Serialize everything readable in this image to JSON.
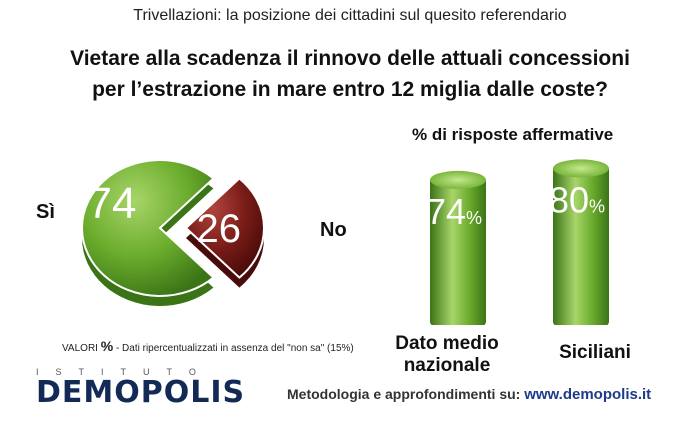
{
  "supertitle": "Trivellazioni: la posizione dei cittadini sul quesito referendario",
  "title_line1": "Vietare alla scadenza il rinnovo delle attuali concessioni",
  "title_line2": "per l’estrazione in mare entro 12 miglia dalle coste?",
  "bars_subtitle": "% di risposte affermative",
  "note": {
    "prefix": "VALORI",
    "percent": "%",
    "text": "- Dati ripercentualizzati  in assenza del \"non sa\" (15%)"
  },
  "logo": {
    "top_text": "ISTITUTO",
    "name": "DEMOPOLIS"
  },
  "footer": {
    "text": "Metodologia e approfondimenti su:",
    "link": "www.demopolis.it"
  },
  "colors": {
    "green": "#6aac2c",
    "green_dark": "#3b7417",
    "green_light": "#a8d56a",
    "red": "#7a1c18",
    "red_dark": "#4a0c0a",
    "red_light": "#b0443c"
  },
  "chart_data": [
    {
      "type": "pie",
      "categories": [
        "Sì",
        "No"
      ],
      "values": [
        74,
        26
      ],
      "value_labels": [
        "74",
        "26"
      ],
      "colors": [
        "#6aac2c",
        "#7a1c18"
      ]
    },
    {
      "type": "bar",
      "title": "% di risposte affermative",
      "categories": [
        "Dato medio nazionale",
        "Siciliani"
      ],
      "category_lines": [
        [
          "Dato medio",
          "nazionale"
        ],
        [
          "Siciliani"
        ]
      ],
      "values": [
        74,
        80
      ],
      "value_labels": [
        "74",
        "80"
      ],
      "unit": "%",
      "ylim": [
        0,
        100
      ],
      "color": "#6aac2c"
    }
  ]
}
